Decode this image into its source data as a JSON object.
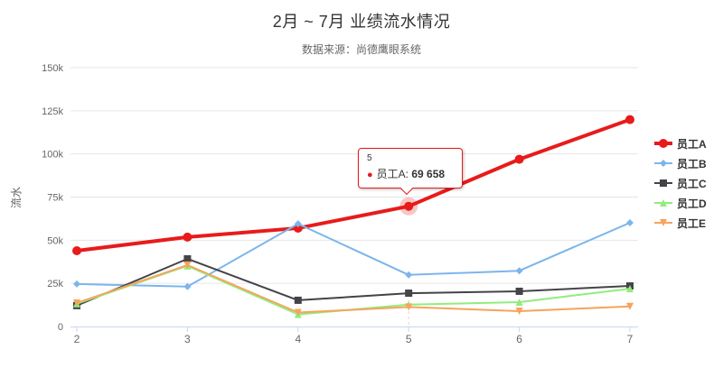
{
  "title": "2月 ~ 7月 业绩流水情况",
  "subtitle": "数据来源：尚德鹰眼系统",
  "y_axis": {
    "title": "流水",
    "tick_labels": [
      "0",
      "25k",
      "50k",
      "75k",
      "100k",
      "125k",
      "150k"
    ]
  },
  "x_axis": {
    "tick_labels": [
      "2",
      "3",
      "4",
      "5",
      "6",
      "7"
    ]
  },
  "tooltip": {
    "header": "5",
    "series_label": "员工A",
    "separator": ": ",
    "value": "69 658"
  },
  "chart_data": {
    "type": "line",
    "x": [
      2,
      3,
      4,
      5,
      6,
      7
    ],
    "ylim": [
      0,
      150000
    ],
    "grid": true,
    "legend_position": "right",
    "style": {
      "grid_color": "#e6e6e6",
      "axis_line_color": "#ccd6eb",
      "label_color": "#666666",
      "title_color": "#333333",
      "halo_color": "#e81b1b"
    },
    "series": [
      {
        "id": "employee-a",
        "name": "员工A",
        "color": "#e81b1b",
        "marker": "circle",
        "line_width": 4,
        "values": [
          43900,
          51800,
          57000,
          69658,
          96900,
          119900
        ]
      },
      {
        "id": "employee-b",
        "name": "员工B",
        "color": "#7cb5ec",
        "marker": "diamond",
        "line_width": 2,
        "values": [
          24600,
          23100,
          59500,
          29900,
          32300,
          60100
        ]
      },
      {
        "id": "employee-c",
        "name": "员工C",
        "color": "#434348",
        "marker": "square",
        "line_width": 2,
        "values": [
          12100,
          39200,
          15200,
          19300,
          20400,
          23500
        ]
      },
      {
        "id": "employee-d",
        "name": "员工D",
        "color": "#90ed7d",
        "marker": "triangle-up",
        "line_width": 2,
        "values": [
          13200,
          35100,
          7000,
          12700,
          14100,
          21900
        ]
      },
      {
        "id": "employee-e",
        "name": "员工E",
        "color": "#f7a35c",
        "marker": "triangle-down",
        "line_width": 2,
        "values": [
          13600,
          35600,
          8100,
          11300,
          8900,
          11600
        ]
      }
    ],
    "hover_point": {
      "series": "员工A",
      "x": 5,
      "value": 69658
    }
  }
}
